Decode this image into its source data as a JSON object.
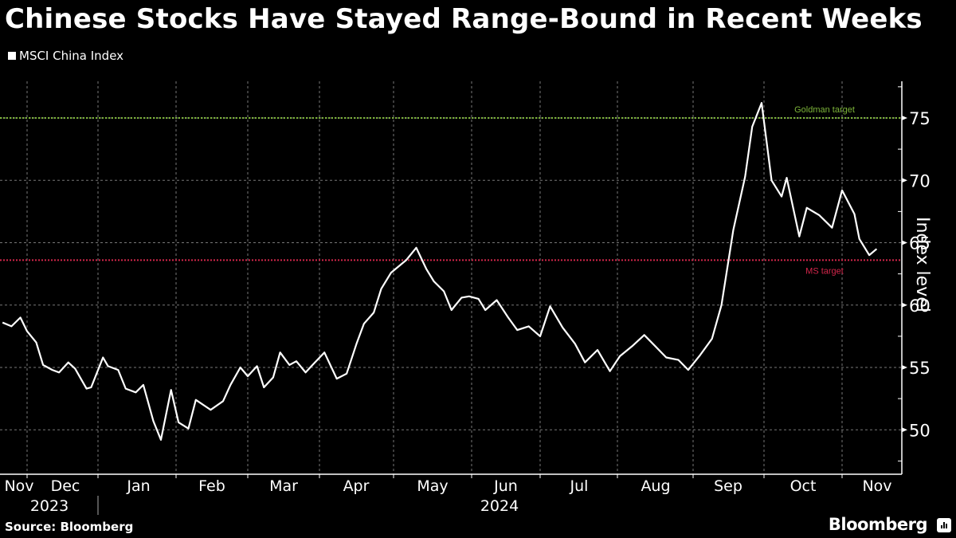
{
  "title": "Chinese Stocks Have Stayed Range-Bound in Recent Weeks",
  "legend": {
    "label": "MSCI China Index",
    "color": "#ffffff"
  },
  "source": "Source: Bloomberg",
  "brand": "Bloomberg",
  "chart_data": {
    "type": "line",
    "title": "Chinese Stocks Have Stayed Range-Bound in Recent Weeks",
    "xlabel": "",
    "ylabel": "Index level",
    "ylim": [
      46.5,
      78
    ],
    "yticks": [
      50,
      55,
      60,
      65,
      70,
      75
    ],
    "grid": true,
    "legend_position": "top-left",
    "x_tick_labels": [
      "Nov",
      "Dec",
      "Jan",
      "Feb",
      "Mar",
      "Apr",
      "May",
      "Jun",
      "Jul",
      "Aug",
      "Sep",
      "Oct",
      "Nov"
    ],
    "year_labels": [
      "2023",
      "2024"
    ],
    "annotations": [
      {
        "label": "Goldman target",
        "value": 75,
        "color": "#7db53a"
      },
      {
        "label": "MS target",
        "value": 63.6,
        "color": "#d4264b"
      }
    ],
    "series": [
      {
        "name": "MSCI China Index",
        "x": [
          "2023-11-20",
          "2023-11-24",
          "2023-11-28",
          "2023-12-01",
          "2023-12-05",
          "2023-12-08",
          "2023-12-12",
          "2023-12-15",
          "2023-12-19",
          "2023-12-22",
          "2023-12-27",
          "2023-12-29",
          "2024-01-03",
          "2024-01-05",
          "2024-01-09",
          "2024-01-12",
          "2024-01-16",
          "2024-01-19",
          "2024-01-23",
          "2024-01-26",
          "2024-01-30",
          "2024-02-02",
          "2024-02-06",
          "2024-02-09",
          "2024-02-15",
          "2024-02-20",
          "2024-02-23",
          "2024-02-27",
          "2024-03-01",
          "2024-03-05",
          "2024-03-08",
          "2024-03-12",
          "2024-03-15",
          "2024-03-19",
          "2024-03-22",
          "2024-03-26",
          "2024-03-29",
          "2024-04-03",
          "2024-04-08",
          "2024-04-12",
          "2024-04-16",
          "2024-04-19",
          "2024-04-23",
          "2024-04-26",
          "2024-04-30",
          "2024-05-06",
          "2024-05-10",
          "2024-05-14",
          "2024-05-17",
          "2024-05-21",
          "2024-05-24",
          "2024-05-28",
          "2024-05-31",
          "2024-06-04",
          "2024-06-07",
          "2024-06-12",
          "2024-06-17",
          "2024-06-21",
          "2024-06-26",
          "2024-07-01",
          "2024-07-05",
          "2024-07-10",
          "2024-07-15",
          "2024-07-19",
          "2024-07-24",
          "2024-07-29",
          "2024-08-02",
          "2024-08-07",
          "2024-08-12",
          "2024-08-16",
          "2024-08-21",
          "2024-08-26",
          "2024-08-30",
          "2024-09-04",
          "2024-09-09",
          "2024-09-13",
          "2024-09-18",
          "2024-09-23",
          "2024-09-26",
          "2024-09-30",
          "2024-10-04",
          "2024-10-08",
          "2024-10-10",
          "2024-10-15",
          "2024-10-18",
          "2024-10-23",
          "2024-10-28",
          "2024-11-01",
          "2024-11-06",
          "2024-11-08",
          "2024-11-12",
          "2024-11-15"
        ],
        "values": [
          58.6,
          58.3,
          59.0,
          57.9,
          57.0,
          55.2,
          54.8,
          54.6,
          55.4,
          54.9,
          53.3,
          53.4,
          55.8,
          55.1,
          54.8,
          53.3,
          53.0,
          53.6,
          50.7,
          49.2,
          53.2,
          50.6,
          50.1,
          52.4,
          51.6,
          52.3,
          53.6,
          55.0,
          54.3,
          55.1,
          53.4,
          54.2,
          56.2,
          55.2,
          55.5,
          54.6,
          55.2,
          56.2,
          54.1,
          54.5,
          56.9,
          58.5,
          59.4,
          61.3,
          62.6,
          63.6,
          64.6,
          62.9,
          61.9,
          61.1,
          59.6,
          60.6,
          60.7,
          60.5,
          59.6,
          60.4,
          59.0,
          58.0,
          58.3,
          57.5,
          59.9,
          58.2,
          56.9,
          55.4,
          56.4,
          54.7,
          55.9,
          56.7,
          57.6,
          56.8,
          55.8,
          55.6,
          54.8,
          56.0,
          57.3,
          60.0,
          66.0,
          70.3,
          74.3,
          76.2,
          70.0,
          68.7,
          70.2,
          65.5,
          67.8,
          67.2,
          66.2,
          69.2,
          67.3,
          65.3,
          64.0,
          64.5
        ]
      }
    ]
  }
}
